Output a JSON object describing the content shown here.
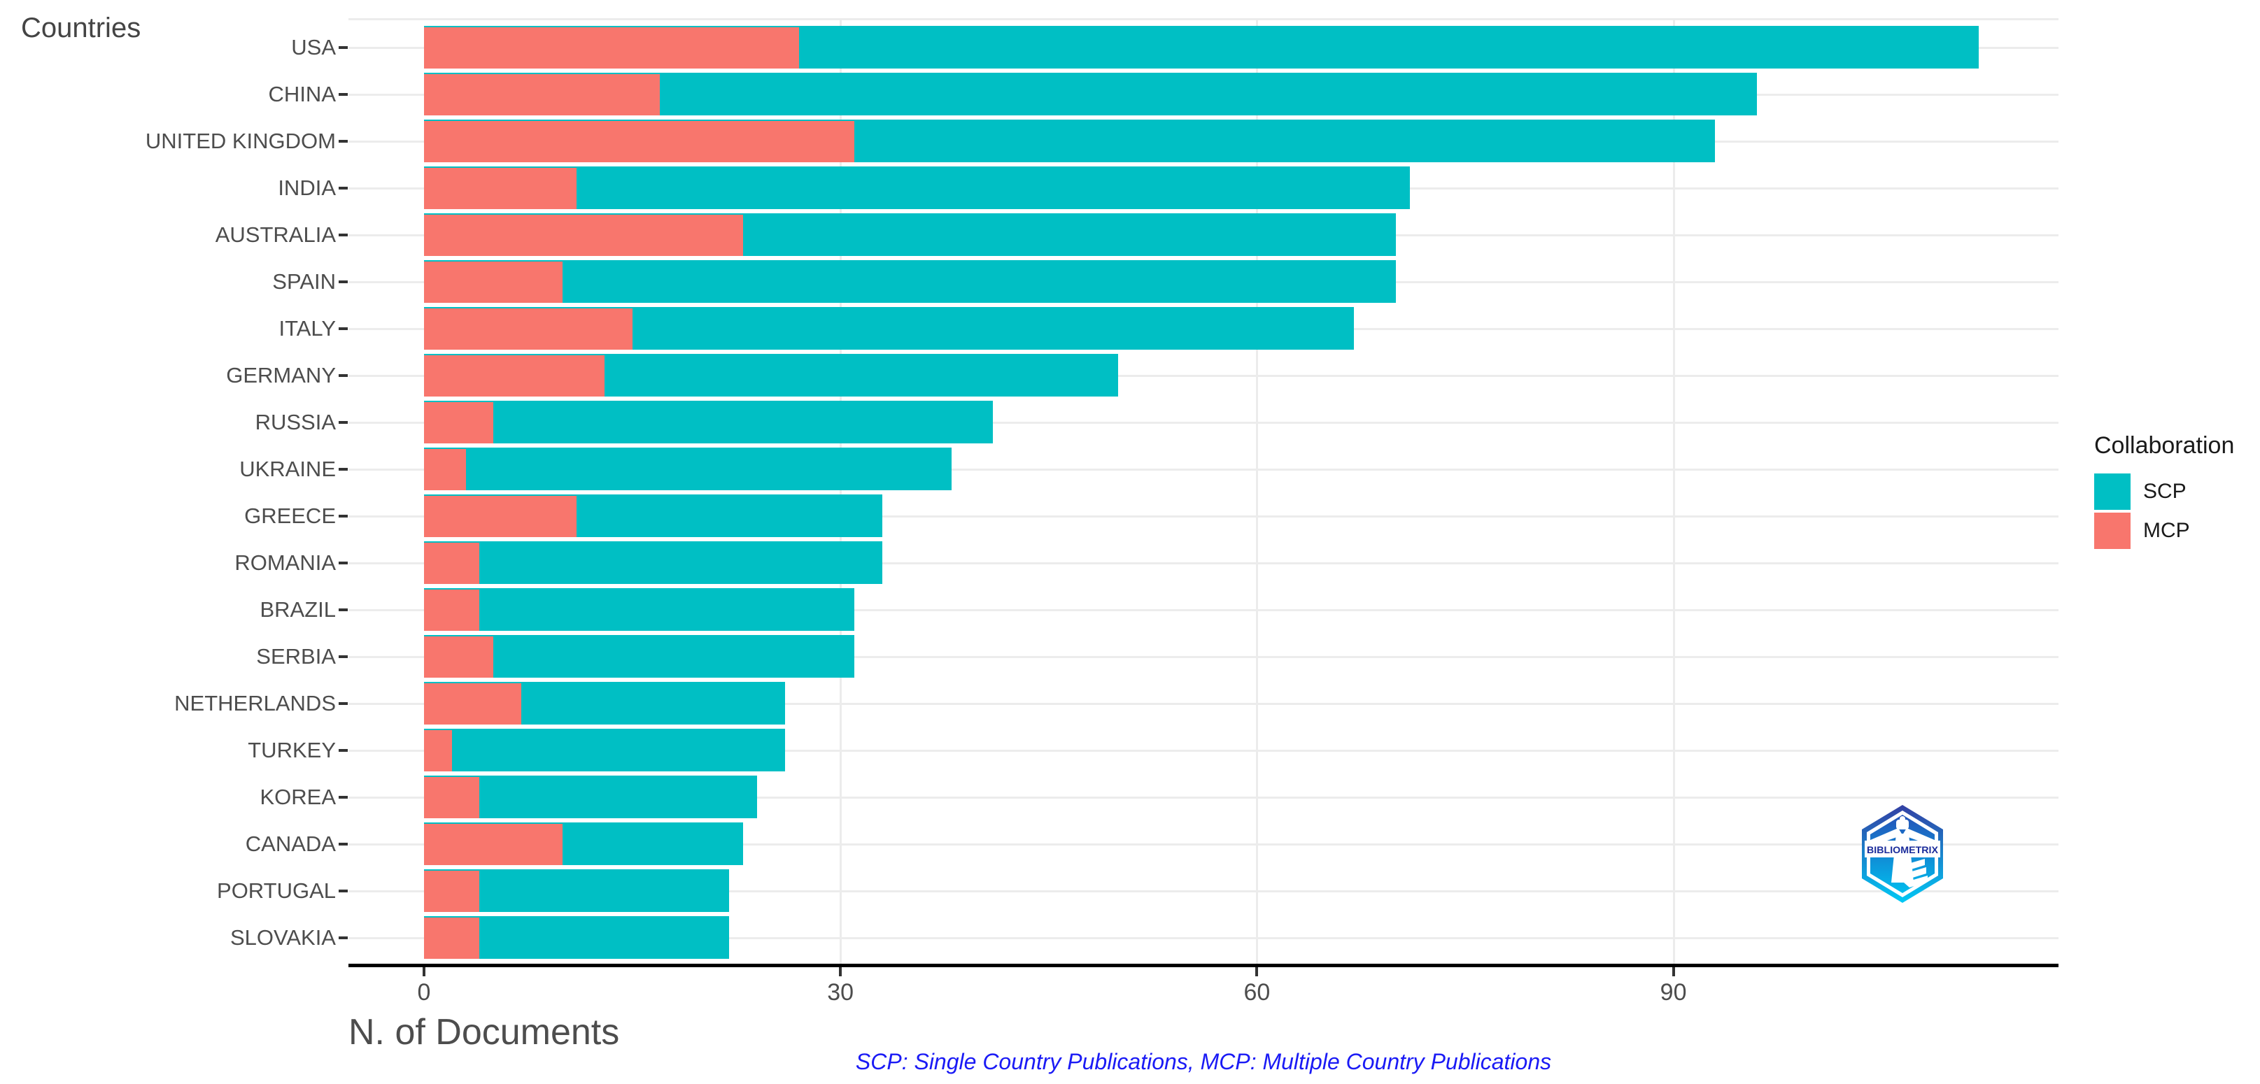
{
  "title": "Countries",
  "xlabel": "N. of Documents",
  "caption": "SCP: Single Country Publications, MCP: Multiple Country Publications",
  "legend": {
    "title": "Collaboration",
    "items": [
      {
        "label": "SCP",
        "color": "#00BFC4"
      },
      {
        "label": "MCP",
        "color": "#F8766D"
      }
    ]
  },
  "logo_text": "BIBLIOMETRIX",
  "colors": {
    "scp": "#00BFC4",
    "mcp": "#F8766D",
    "grid": "#ECECEC",
    "axis_line": "#000000",
    "axis_text": "#4D4D4D",
    "legend_text": "#1A1A1A",
    "caption_blue": "#1A1AF5"
  },
  "chart_data": {
    "type": "bar",
    "orientation": "horizontal",
    "stacked": true,
    "stack_order": [
      "MCP",
      "SCP"
    ],
    "title": "Countries",
    "xlabel": "N. of Documents",
    "ylabel": "Countries",
    "legend_position": "right",
    "grid": "light gray major vertical lines at x ticks and horizontal lines at each category, white background",
    "x_ticks": [
      0,
      30,
      60,
      90
    ],
    "xlim": [
      -5.5,
      117.7
    ],
    "categories": [
      "USA",
      "CHINA",
      "UNITED KINGDOM",
      "INDIA",
      "AUSTRALIA",
      "SPAIN",
      "ITALY",
      "GERMANY",
      "RUSSIA",
      "UKRAINE",
      "GREECE",
      "ROMANIA",
      "BRAZIL",
      "SERBIA",
      "NETHERLANDS",
      "TURKEY",
      "KOREA",
      "CANADA",
      "PORTUGAL",
      "SLOVAKIA"
    ],
    "series": [
      {
        "name": "SCP",
        "color": "#00BFC4",
        "values": [
          85,
          79,
          62,
          60,
          47,
          60,
          52,
          37,
          36,
          35,
          22,
          29,
          27,
          26,
          19,
          24,
          20,
          13,
          18,
          18
        ]
      },
      {
        "name": "MCP",
        "color": "#F8766D",
        "values": [
          27,
          17,
          31,
          11,
          23,
          10,
          15,
          13,
          5,
          3,
          11,
          4,
          4,
          5,
          7,
          2,
          4,
          10,
          4,
          4
        ]
      }
    ],
    "totals": [
      112,
      96,
      93,
      71,
      70,
      70,
      67,
      50,
      41,
      38,
      33,
      33,
      31,
      31,
      26,
      26,
      24,
      23,
      22,
      22
    ]
  }
}
